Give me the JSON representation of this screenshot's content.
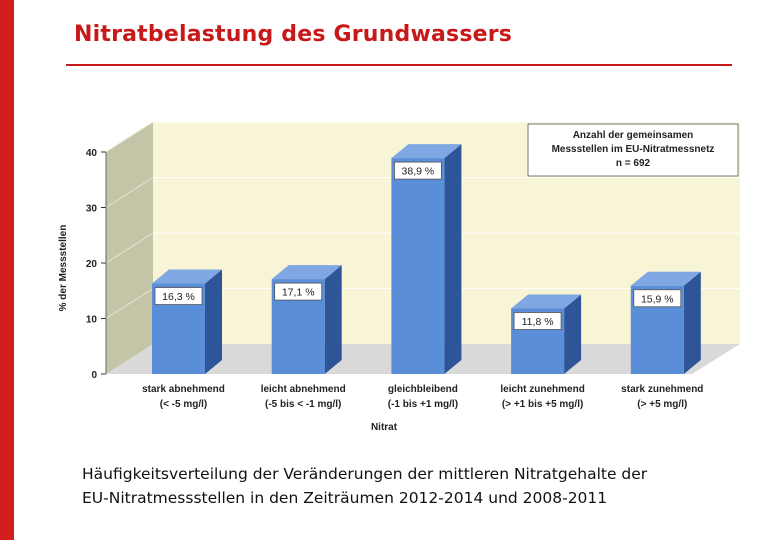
{
  "slide": {
    "title": "Nitratbelastung des Grundwassers",
    "caption_lines": [
      "Häufigkeitsverteilung der Veränderungen der mittleren Nitratgehalte der",
      "EU-Nitratmessstellen in den Zeiträumen 2012-2014 und 2008-2011"
    ]
  },
  "colors": {
    "accent": "#d21f1b",
    "title": "#c8191a",
    "bar_front": "#5b8ed8",
    "bar_side": "#2d5597",
    "bar_top": "#7fa7e4",
    "back_wall": "#f7f5d6",
    "side_wall": "#c4c4a6",
    "floor": "#d9d9d9"
  },
  "chart_data": {
    "type": "bar",
    "title": "",
    "xlabel": "Nitrat",
    "ylabel": "% der Messstellen",
    "ylim": [
      0,
      40
    ],
    "yticks": [
      0,
      10,
      20,
      30,
      40
    ],
    "grid": true,
    "categories": [
      [
        "stark abnehmend",
        "(< -5 mg/l)"
      ],
      [
        "leicht abnehmend",
        "(-5 bis < -1 mg/l)"
      ],
      [
        "gleichbleibend",
        "(-1 bis +1 mg/l)"
      ],
      [
        "leicht zunehmend",
        "(> +1 bis +5 mg/l)"
      ],
      [
        "stark zunehmend",
        "(> +5 mg/l)"
      ]
    ],
    "values": [
      16.3,
      17.1,
      38.9,
      11.8,
      15.9
    ],
    "value_labels": [
      "16,3 %",
      "17,1 %",
      "38,9 %",
      "11,8 %",
      "15,9 %"
    ],
    "legend_box": [
      "Anzahl der gemeinsamen",
      "Messstellen im EU-Nitratmessnetz",
      "n = 692"
    ],
    "legend_position": "top-right"
  }
}
